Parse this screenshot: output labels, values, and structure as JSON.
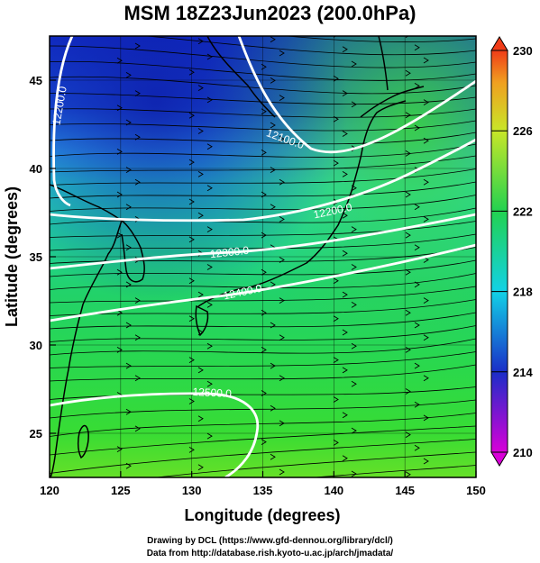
{
  "title": "MSM 18Z23Jun2023 (200.0hPa)",
  "chart_data": {
    "type": "heatmap",
    "xlabel": "Longitude (degrees)",
    "ylabel": "Latitude  (degrees)",
    "xlim": [
      120,
      150
    ],
    "ylim": [
      22.5,
      47.5
    ],
    "xticks": [
      "120",
      "125",
      "130",
      "135",
      "140",
      "145",
      "150"
    ],
    "yticks": [
      "25",
      "30",
      "35",
      "40",
      "45"
    ],
    "colorbar": {
      "min": 210,
      "max": 230,
      "ticks": [
        "210",
        "214",
        "218",
        "222",
        "226",
        "230"
      ],
      "colors": [
        "#d800d8",
        "#1a2ec8",
        "#12d2e6",
        "#22d250",
        "#c8e628",
        "#f03c18"
      ]
    },
    "contours": [
      {
        "label": "12200.0",
        "lat": 41.5
      },
      {
        "label": "12100.0",
        "lat": 42.0
      },
      {
        "label": "12200.0",
        "lat": 38.2
      },
      {
        "label": "12300.0",
        "lat": 35.7
      },
      {
        "label": "12400.0",
        "lat": 33.2
      },
      {
        "label": "12500.0",
        "lat": 27.0
      }
    ],
    "grid": true,
    "field": "temperature (K) with wind streamlines and geopotential height contours"
  },
  "credits": {
    "line1": "Drawing by DCL (https://www.gfd-dennou.org/library/dcl/)",
    "line2": "Data from http://database.rish.kyoto-u.ac.jp/arch/jmadata/"
  }
}
